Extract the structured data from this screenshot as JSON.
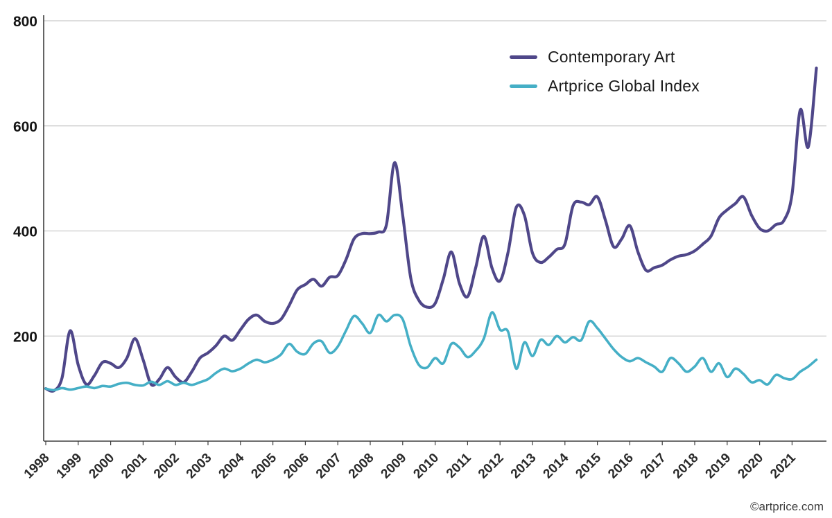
{
  "chart_data": {
    "type": "line",
    "title": "",
    "xlabel": "",
    "ylabel": "",
    "grid": "horizontal",
    "legend_position": "top-right",
    "ylim": [
      0,
      800
    ],
    "y_ticks": [
      200,
      400,
      600,
      800
    ],
    "x_tick_labels": [
      "1998",
      "1999",
      "2000",
      "2001",
      "2002",
      "2003",
      "2004",
      "2005",
      "2006",
      "2007",
      "2008",
      "2009",
      "2010",
      "2011",
      "2012",
      "2013",
      "2014",
      "2015",
      "2016",
      "2017",
      "2018",
      "2019",
      "2020",
      "2021"
    ],
    "x_start_year": 1998,
    "x_step_years": 0.25,
    "series": [
      {
        "name": "Contemporary Art",
        "color": "#4f4789",
        "stroke_width": 4.2,
        "values": [
          100,
          96,
          120,
          210,
          145,
          108,
          125,
          150,
          148,
          140,
          158,
          195,
          155,
          108,
          118,
          140,
          122,
          112,
          132,
          158,
          168,
          182,
          200,
          192,
          212,
          232,
          240,
          228,
          224,
          232,
          258,
          288,
          298,
          308,
          295,
          312,
          315,
          345,
          385,
          395,
          395,
          398,
          412,
          530,
          430,
          310,
          268,
          255,
          262,
          308,
          360,
          300,
          275,
          330,
          390,
          330,
          305,
          360,
          445,
          430,
          358,
          340,
          350,
          365,
          375,
          448,
          455,
          450,
          465,
          420,
          370,
          385,
          410,
          360,
          325,
          330,
          335,
          345,
          352,
          355,
          362,
          375,
          390,
          425,
          440,
          452,
          465,
          430,
          405,
          400,
          412,
          420,
          470,
          630,
          560,
          710
        ]
      },
      {
        "name": "Artprice Global Index",
        "color": "#45afc6",
        "stroke_width": 3.6,
        "values": [
          100,
          97,
          101,
          98,
          101,
          104,
          101,
          105,
          104,
          109,
          111,
          107,
          106,
          113,
          107,
          114,
          107,
          111,
          107,
          112,
          118,
          130,
          138,
          133,
          138,
          148,
          155,
          150,
          155,
          165,
          185,
          170,
          166,
          186,
          190,
          168,
          180,
          210,
          238,
          224,
          206,
          240,
          228,
          240,
          232,
          180,
          145,
          140,
          158,
          148,
          185,
          178,
          160,
          172,
          195,
          245,
          212,
          208,
          138,
          188,
          162,
          193,
          183,
          200,
          188,
          198,
          192,
          228,
          215,
          195,
          175,
          160,
          152,
          158,
          150,
          142,
          132,
          158,
          148,
          132,
          142,
          158,
          132,
          148,
          122,
          138,
          128,
          112,
          116,
          108,
          126,
          120,
          118,
          132,
          142,
          155
        ]
      }
    ],
    "axis_color": "#3d3d3d",
    "gridline_color": "#cbcbcb",
    "y_label_color": "#151515",
    "x_label_color": "#2a2a2a"
  },
  "footer": {
    "credit": "©artprice.com"
  }
}
